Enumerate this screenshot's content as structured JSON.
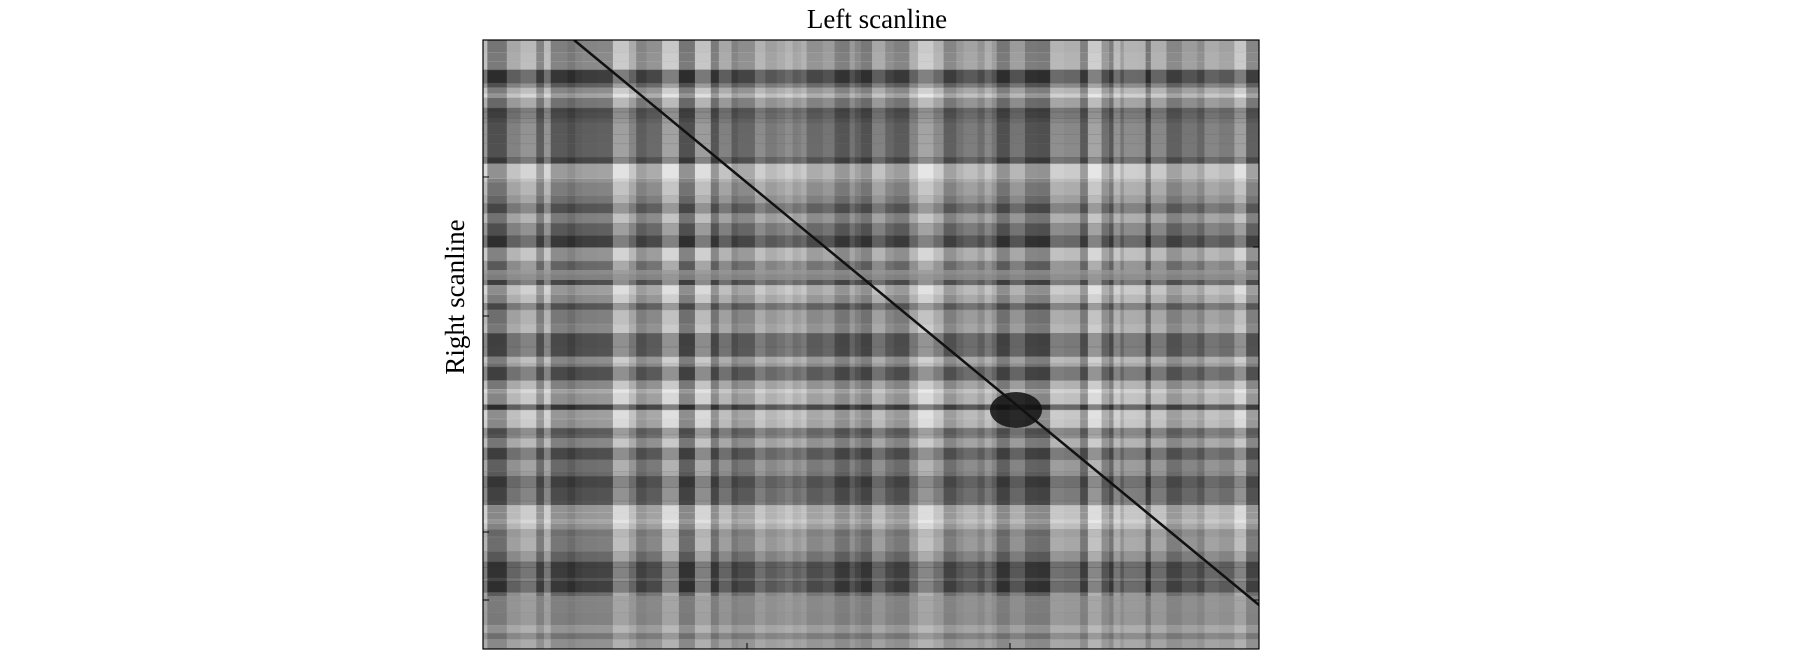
{
  "figure": {
    "title": "Left scanline",
    "ylabel": "Right scanline"
  }
}
